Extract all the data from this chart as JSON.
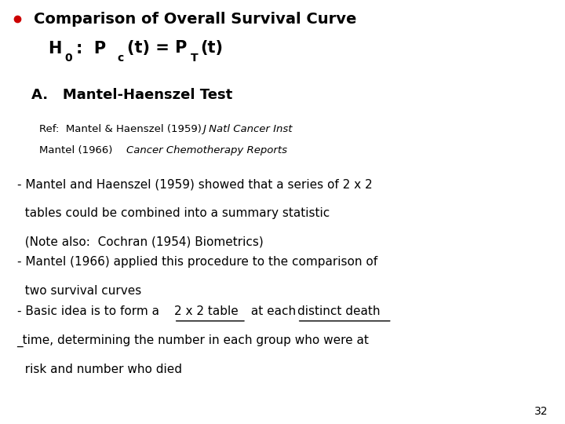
{
  "background_color": "#ffffff",
  "page_number": "32",
  "bullet_color": "#cc0000",
  "title_line1": "Comparison of Overall Survival Curve",
  "section_a": "A.   Mantel-Haenszel Test",
  "ref_line1_normal": "Ref:  Mantel & Haenszel (1959) ",
  "ref_line1_italic": "J Natl Cancer Inst",
  "ref_line2_normal": "Mantel (1966) ",
  "ref_line2_italic": "Cancer Chemotherapy Reports",
  "bullet1_line1": "- Mantel and Haenszel (1959) showed that a series of 2 x 2",
  "bullet1_line2": "  tables could be combined into a summary statistic",
  "bullet1_line3": "  (Note also:  Cochran (1954) Biometrics)",
  "bullet2_line1": "- Mantel (1966) applied this procedure to the comparison of",
  "bullet2_line2": "  two survival curves",
  "bullet3_line1_pre": "- Basic idea is to form a ",
  "bullet3_line1_underline": "2 x 2 table",
  "bullet3_line1_mid": " at each ",
  "bullet3_line1_underline2": "distinct death",
  "bullet3_line2": "_time, determining the number in each group who were at",
  "bullet3_line3": "  risk and number who died"
}
